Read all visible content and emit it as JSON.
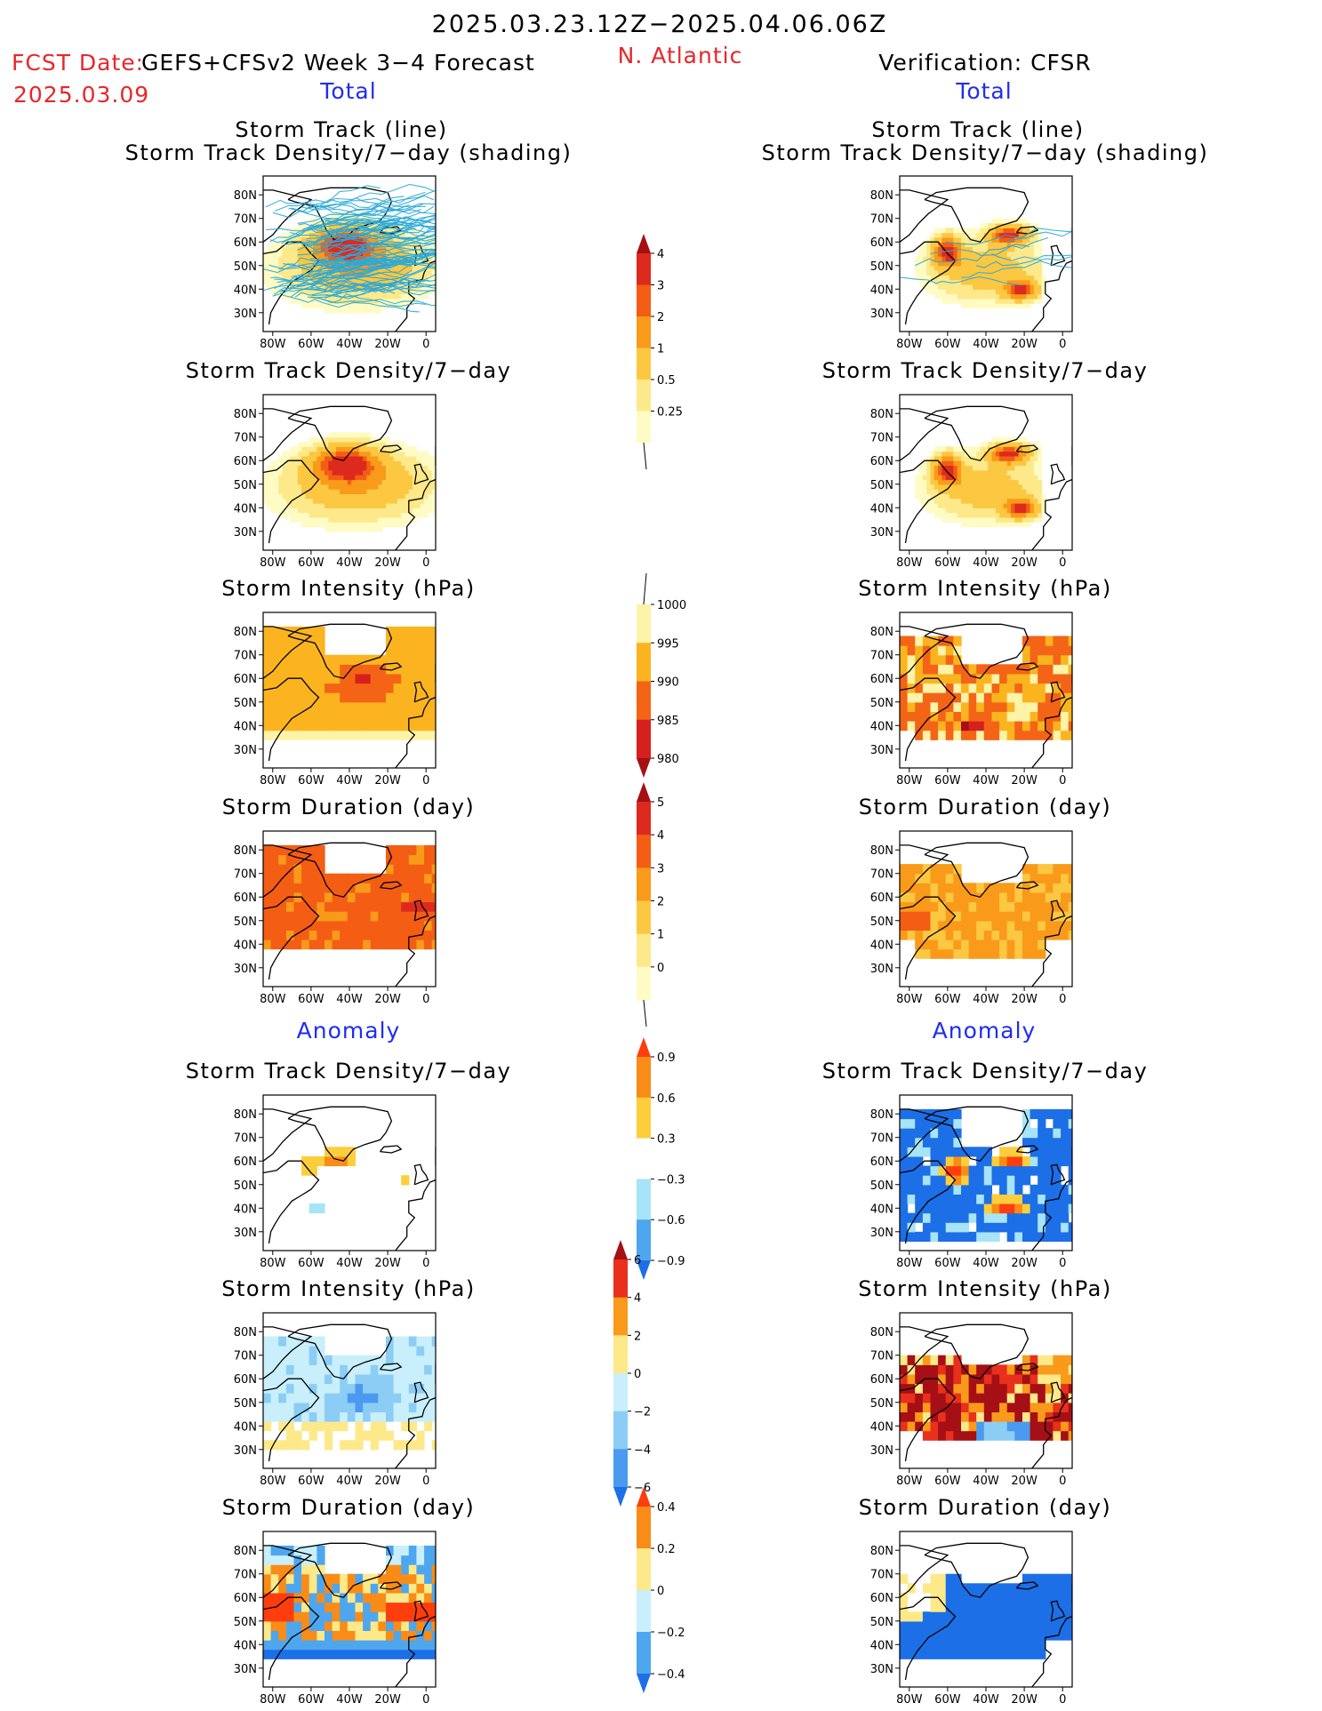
{
  "header": {
    "period": "2025.03.23.12Z−2025.04.06.06Z",
    "fcst_label": "FCST Date:",
    "fcst_date": "2025.03.09",
    "model": "GEFS+CFSv2 Week 3−4 Forecast",
    "region": "N. Atlantic",
    "verification": "Verification: CFSR",
    "left_section_total": "Total",
    "right_section_total": "Total",
    "left_section_anomaly": "Anomaly",
    "right_section_anomaly": "Anomaly"
  },
  "panel_titles": {
    "track_line": "Storm Track (line)",
    "track_shading": "Storm Track Density/7−day (shading)",
    "density": "Storm Track Density/7−day",
    "intensity": "Storm Intensity (hPa)",
    "duration": "Storm Duration (day)"
  },
  "axes": {
    "lat_labels": [
      "80N",
      "70N",
      "60N",
      "50N",
      "40N",
      "30N"
    ],
    "lon_labels": [
      "80W",
      "60W",
      "40W",
      "20W",
      "0"
    ]
  },
  "colorbars": [
    {
      "id": "density_total",
      "labels": [
        "4",
        "3",
        "2",
        "1",
        "0.5",
        "0.25"
      ],
      "colors": [
        "#a50f15",
        "#dd2a1e",
        "#f45d14",
        "#f99a1a",
        "#fcc741",
        "#fde98a",
        "#fffbc4"
      ],
      "top_triangle": true,
      "bottom_line": true,
      "top_line": false
    },
    {
      "id": "intensity_total",
      "labels": [
        "1000",
        "995",
        "990",
        "985",
        "980"
      ],
      "colors": [
        "#fff3a8",
        "#fbb41f",
        "#f46416",
        "#d6201e",
        "#a50f15"
      ],
      "top_triangle": false,
      "bottom_triangle": true,
      "top_line": true
    },
    {
      "id": "duration_total",
      "labels": [
        "5",
        "4",
        "3",
        "2",
        "1",
        "0"
      ],
      "colors": [
        "#a50f15",
        "#dd2a1e",
        "#f45d14",
        "#f99a1a",
        "#fcc741",
        "#fde98a",
        "#fffbc4"
      ],
      "top_triangle": true,
      "bottom_line": true
    },
    {
      "id": "density_anom",
      "labels": [
        "0.9",
        "0.6",
        "0.3",
        "−0.3",
        "−0.6",
        "−0.9"
      ],
      "colors": [
        "#ff3d0d",
        "#f98c16",
        "#fdce3c",
        "#ffffff",
        "#a8e4f7",
        "#4ea6ee",
        "#1c6fe6"
      ],
      "top_triangle": true,
      "bottom_triangle": true
    },
    {
      "id": "intensity_anom",
      "labels": [
        "6",
        "4",
        "2",
        "0",
        "−2",
        "−4",
        "−6"
      ],
      "colors": [
        "#a50f15",
        "#e8301d",
        "#f99a1a",
        "#fde98a",
        "#c8effb",
        "#8ccdf5",
        "#4a9af0",
        "#1c6fe6"
      ],
      "top_triangle": true,
      "bottom_triangle": true
    },
    {
      "id": "duration_anom",
      "labels": [
        "0.4",
        "0.2",
        "0",
        "−0.2",
        "−0.4"
      ],
      "colors": [
        "#ff3d0d",
        "#f98c16",
        "#fde98a",
        "#c8effb",
        "#4ea6ee",
        "#1c6fe6"
      ],
      "top_triangle": true,
      "bottom_triangle": true
    }
  ],
  "map_legend": {
    "land_outline": "#000000",
    "track_line_color": "#2aa8d8"
  }
}
